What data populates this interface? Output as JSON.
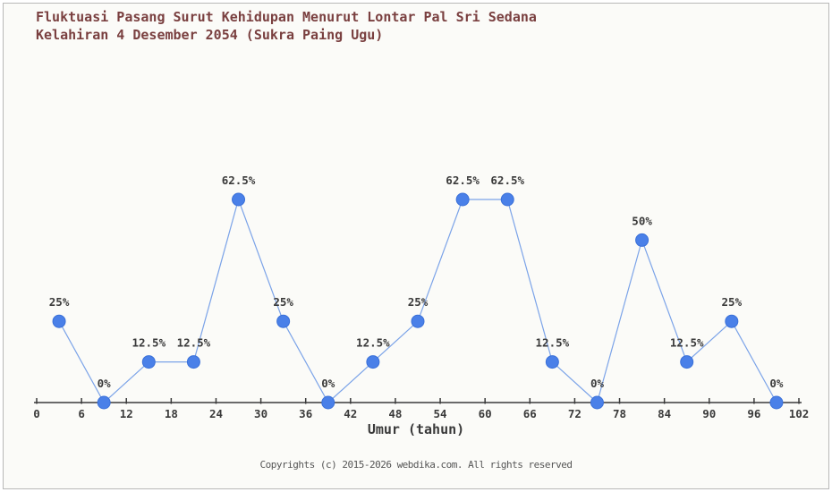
{
  "title_line1": "Fluktuasi Pasang Surut Kehidupan Menurut Lontar Pal Sri Sedana",
  "title_line2": "Kelahiran 4 Desember 2054 (Sukra Paing Ugu)",
  "footer": "Copyrights (c) 2015-2026 webdika.com. All rights reserved",
  "colors": {
    "background": "#fbfbf8",
    "frame_border": "#b8b8b8",
    "title_text": "#7a4040",
    "axis": "#3a3a3a",
    "tick_label": "#3a3a3a",
    "value_label": "#3a3a3a",
    "line": "#7ba3e8",
    "marker_fill": "#4a80e8",
    "marker_edge": "#3a70d8",
    "footer_text": "#555555"
  },
  "chart_data": {
    "type": "line",
    "title": "Fluktuasi Pasang Surut Kehidupan Menurut Lontar Pal Sri Sedana Kelahiran 4 Desember 2054 (Sukra Paing Ugu)",
    "xlabel": "Umur (tahun)",
    "ylabel": "",
    "x": [
      3,
      9,
      15,
      21,
      27,
      33,
      39,
      45,
      51,
      57,
      63,
      69,
      75,
      81,
      87,
      93,
      99
    ],
    "values": [
      25,
      0,
      12.5,
      12.5,
      62.5,
      25,
      0,
      12.5,
      25,
      62.5,
      62.5,
      12.5,
      0,
      50,
      12.5,
      25,
      0
    ],
    "point_labels": [
      "25%",
      "0%",
      "12.5%",
      "12.5%",
      "62.5%",
      "25%",
      "0%",
      "12.5%",
      "25%",
      "62.5%",
      "62.5%",
      "12.5%",
      "0%",
      "50%",
      "12.5%",
      "25%",
      "0%"
    ],
    "x_ticks": [
      0,
      6,
      12,
      18,
      24,
      30,
      36,
      42,
      48,
      54,
      60,
      66,
      72,
      78,
      84,
      90,
      96,
      102
    ],
    "xlim": [
      0,
      102
    ],
    "ylim": [
      0,
      70
    ],
    "grid": false,
    "legend": null,
    "marker": "circle"
  }
}
